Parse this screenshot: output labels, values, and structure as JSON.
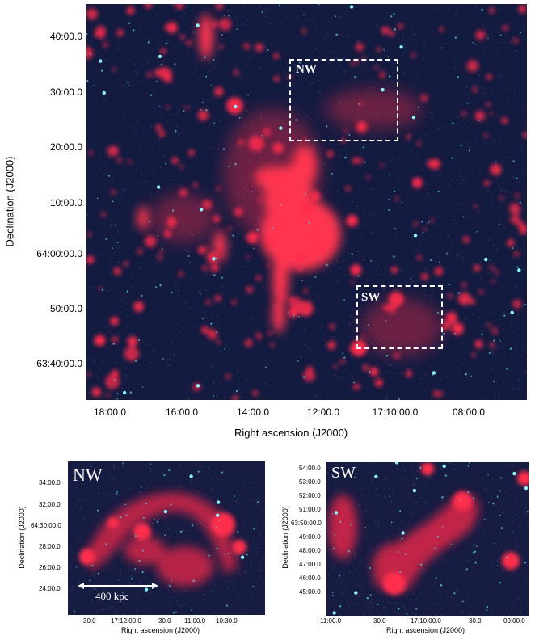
{
  "main": {
    "y_title": "Declination (J2000)",
    "x_title": "Right ascension (J2000)",
    "y_ticks": [
      "40:00.0",
      "30:00.0",
      "20:00.0",
      "10:00.0",
      "64:00:00.0",
      "50:00.0",
      "63:40:00.0"
    ],
    "x_ticks": [
      "18:00.0",
      "16:00.0",
      "14:00.0",
      "12:00.0",
      "17:10:00.0",
      "08:00.0"
    ],
    "regions": [
      {
        "label": "NW"
      },
      {
        "label": "SW"
      }
    ],
    "colors": {
      "background": "#10183a",
      "emission": "#ff2a4a",
      "stars": "#4fe6ff"
    }
  },
  "inset_nw": {
    "tag": "NW",
    "y_title": "Declination (J2000)",
    "x_title": "Right ascension (J2000)",
    "y_ticks": [
      "34:00.0",
      "32:00.0",
      "64:30:00.0",
      "28:00.0",
      "26:00.0",
      "24:00.0"
    ],
    "x_ticks": [
      "30.0",
      "17:12:00.0",
      "30.0",
      "11:00.0",
      "10:30.0"
    ],
    "scale_bar": "400 kpc"
  },
  "inset_sw": {
    "tag": "SW",
    "y_title": "Declination (J2000)",
    "x_title": "Right ascension (J2000)",
    "y_ticks": [
      "54:00.0",
      "53:00.0",
      "52:00.0",
      "51:00.0",
      "63:50:00.0",
      "49:00.0",
      "48:00.0",
      "47:00.0",
      "46:00.0",
      "45:00.0"
    ],
    "x_ticks": [
      "11:00.0",
      "30.0",
      "17:10:00.0",
      "30.0",
      "09:00.0"
    ]
  }
}
